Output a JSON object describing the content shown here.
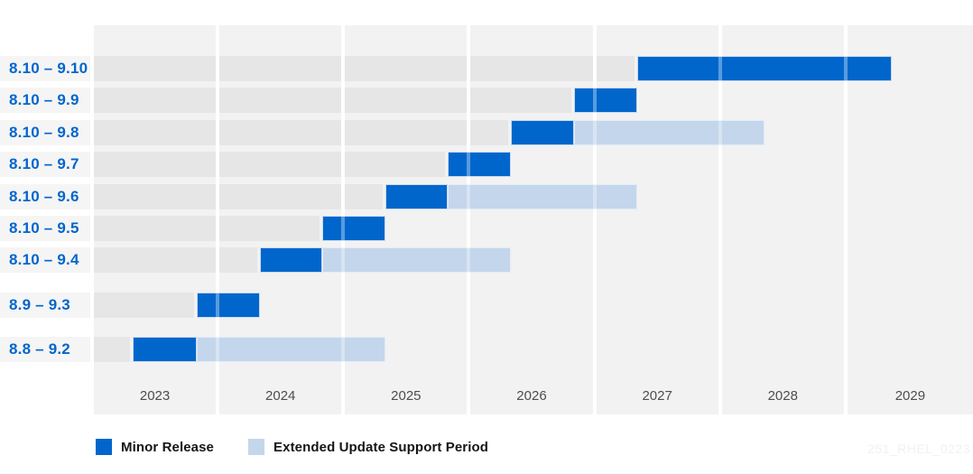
{
  "watermark": "251_RHEL_0223",
  "colors": {
    "minor_release": "#0066cc",
    "eus_period": "#c4d6eb",
    "column_bg": "#f2f2f2",
    "track_bg": "#e6e6e7",
    "label_stripe_bg": "#f5f5f5",
    "row_label_text": "#0066cc",
    "axis_text": "#4b4d50",
    "legend_text": "#151515"
  },
  "legend": [
    {
      "label": "Minor Release",
      "color": "#0066cc"
    },
    {
      "label": "Extended Update Support Period",
      "color": "#c4d6eb"
    }
  ],
  "chart_data": {
    "type": "gantt",
    "title": "",
    "x_axis": {
      "start_year": 2023,
      "tick_labels": [
        "2023",
        "2024",
        "2025",
        "2026",
        "2027",
        "2028",
        "2029"
      ],
      "grid": "year columns with white separators"
    },
    "legend_position": "bottom-left",
    "rows": [
      {
        "label": "8.10 – 9.10",
        "group": "8.10",
        "minor": [
          2027.33,
          2029.35
        ],
        "eus": null
      },
      {
        "label": "8.10 – 9.9",
        "group": "8.10",
        "minor": [
          2026.82,
          2027.33
        ],
        "eus": null
      },
      {
        "label": "8.10 – 9.8",
        "group": "8.10",
        "minor": [
          2026.32,
          2026.82
        ],
        "eus": [
          2026.82,
          2028.34
        ]
      },
      {
        "label": "8.10 – 9.7",
        "group": "8.10",
        "minor": [
          2025.82,
          2026.32
        ],
        "eus": null
      },
      {
        "label": "8.10 – 9.6",
        "group": "8.10",
        "minor": [
          2025.32,
          2025.82
        ],
        "eus": [
          2025.82,
          2027.33
        ]
      },
      {
        "label": "8.10 – 9.5",
        "group": "8.10",
        "minor": [
          2024.82,
          2025.32
        ],
        "eus": null
      },
      {
        "label": "8.10 – 9.4",
        "group": "8.10",
        "minor": [
          2024.32,
          2024.82
        ],
        "eus": [
          2024.82,
          2026.32
        ]
      },
      {
        "label": "8.9 – 9.3",
        "group": "8.9",
        "minor": [
          2023.82,
          2024.32
        ],
        "eus": null
      },
      {
        "label": "8.8 – 9.2",
        "group": "8.8",
        "minor": [
          2023.31,
          2023.82
        ],
        "eus": [
          2023.82,
          2025.32
        ]
      }
    ]
  }
}
